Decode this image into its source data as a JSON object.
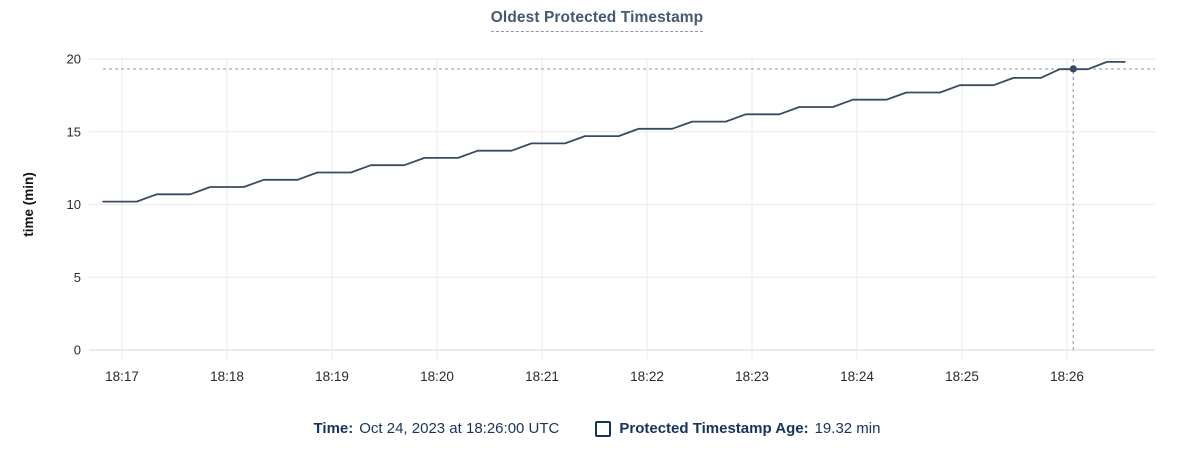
{
  "chart": {
    "title": "Oldest Protected Timestamp"
  },
  "legend": {
    "time_label": "Time:",
    "time_value": "Oct 24, 2023 at 18:26:00 UTC",
    "series_checkbox_icon": "checkbox-unchecked-square",
    "series_label": "Protected Timestamp Age:",
    "series_value": "19.32 min"
  },
  "colors": {
    "title": "#475872",
    "title_underline": "#8a9ab0",
    "legend_text": "#16335e",
    "line": "#3a4a62",
    "crosshair": "#a2b2c3",
    "grid": "#ececec",
    "axis": "#e3e3e3",
    "tick_label": "#2a2a2a",
    "axis_title": "#111111"
  },
  "chart_data": {
    "type": "line",
    "title": "Oldest Protected Timestamp",
    "xlabel": "",
    "ylabel": "time (min)",
    "ylim": [
      0,
      20
    ],
    "yticks": [
      0,
      5,
      10,
      15,
      20
    ],
    "x_tick_labels": [
      "18:17",
      "18:18",
      "18:19",
      "18:20",
      "18:21",
      "18:22",
      "18:23",
      "18:24",
      "18:25",
      "18:26"
    ],
    "x_units": "minutes after 18:17",
    "grid": true,
    "legend_position": "bottom",
    "series": [
      {
        "name": "Protected Timestamp Age",
        "units": "min",
        "points": [
          [
            -0.18,
            10.2
          ],
          [
            0.14,
            10.2
          ],
          [
            0.33,
            10.7
          ],
          [
            0.65,
            10.7
          ],
          [
            0.84,
            11.2
          ],
          [
            1.16,
            11.2
          ],
          [
            1.35,
            11.7
          ],
          [
            1.67,
            11.7
          ],
          [
            1.86,
            12.2
          ],
          [
            2.18,
            12.2
          ],
          [
            2.37,
            12.7
          ],
          [
            2.69,
            12.7
          ],
          [
            2.88,
            13.2
          ],
          [
            3.2,
            13.2
          ],
          [
            3.39,
            13.7
          ],
          [
            3.71,
            13.7
          ],
          [
            3.9,
            14.2
          ],
          [
            4.22,
            14.2
          ],
          [
            4.41,
            14.7
          ],
          [
            4.73,
            14.7
          ],
          [
            4.92,
            15.2
          ],
          [
            5.24,
            15.2
          ],
          [
            5.43,
            15.7
          ],
          [
            5.75,
            15.7
          ],
          [
            5.94,
            16.2
          ],
          [
            6.26,
            16.2
          ],
          [
            6.45,
            16.7
          ],
          [
            6.77,
            16.7
          ],
          [
            6.96,
            17.2
          ],
          [
            7.28,
            17.2
          ],
          [
            7.47,
            17.7
          ],
          [
            7.79,
            17.7
          ],
          [
            7.98,
            18.2
          ],
          [
            8.3,
            18.2
          ],
          [
            8.49,
            18.7
          ],
          [
            8.75,
            18.7
          ],
          [
            8.93,
            19.3
          ],
          [
            9.2,
            19.3
          ],
          [
            9.38,
            19.8
          ],
          [
            9.55,
            19.8
          ]
        ]
      }
    ],
    "crosshair": {
      "x_label": "18:26:00",
      "x": 9.06,
      "y_value": 19.32
    },
    "highlight_point": {
      "x": 9.06,
      "value": 19.32
    }
  }
}
